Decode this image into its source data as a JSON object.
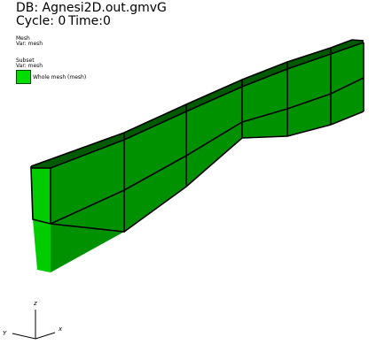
{
  "header": {
    "db": "DB: Agnesi2D.out.gmvG",
    "cycle": "Cycle: 0",
    "time": "Time:0"
  },
  "legend": {
    "mesh_title": "Mesh",
    "mesh_var": "Var: mesh",
    "subset_title": "Subset",
    "subset_var": "Var: mesh",
    "swatch_label": "Whole mesh (mesh)",
    "swatch_color": "#00dd00"
  },
  "axes": {
    "z": "z",
    "y": "Y",
    "x": "x"
  },
  "colors": {
    "top_face": "#005a00",
    "front_face": "#009100",
    "side_face": "#00cc00",
    "edge": "#000000"
  }
}
